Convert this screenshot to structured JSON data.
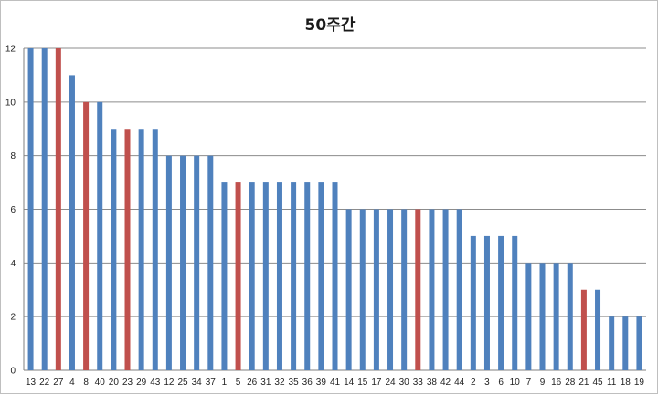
{
  "chart_data": {
    "type": "bar",
    "title": "50주간",
    "xlabel": "",
    "ylabel": "",
    "ylim": [
      0,
      12
    ],
    "yticks": [
      0,
      2,
      4,
      6,
      8,
      10,
      12
    ],
    "grid": true,
    "legend": "none",
    "colors": {
      "normal": "#4f81bd",
      "highlight": "#c0504d",
      "grid": "#8c8c8c",
      "axis": "#7f7f7f"
    },
    "categories": [
      "13",
      "22",
      "27",
      "4",
      "8",
      "40",
      "20",
      "23",
      "29",
      "43",
      "12",
      "25",
      "34",
      "37",
      "1",
      "5",
      "26",
      "31",
      "32",
      "35",
      "36",
      "39",
      "41",
      "14",
      "15",
      "17",
      "24",
      "30",
      "33",
      "38",
      "42",
      "44",
      "2",
      "3",
      "6",
      "10",
      "7",
      "9",
      "16",
      "28",
      "21",
      "45",
      "11",
      "18",
      "19"
    ],
    "values": [
      12,
      12,
      12,
      11,
      10,
      10,
      9,
      9,
      9,
      9,
      8,
      8,
      8,
      8,
      7,
      7,
      7,
      7,
      7,
      7,
      7,
      7,
      7,
      6,
      6,
      6,
      6,
      6,
      6,
      6,
      6,
      6,
      5,
      5,
      5,
      5,
      4,
      4,
      4,
      4,
      3,
      3,
      2,
      2,
      2
    ],
    "highlighted": [
      "27",
      "8",
      "23",
      "5",
      "33",
      "21"
    ]
  }
}
